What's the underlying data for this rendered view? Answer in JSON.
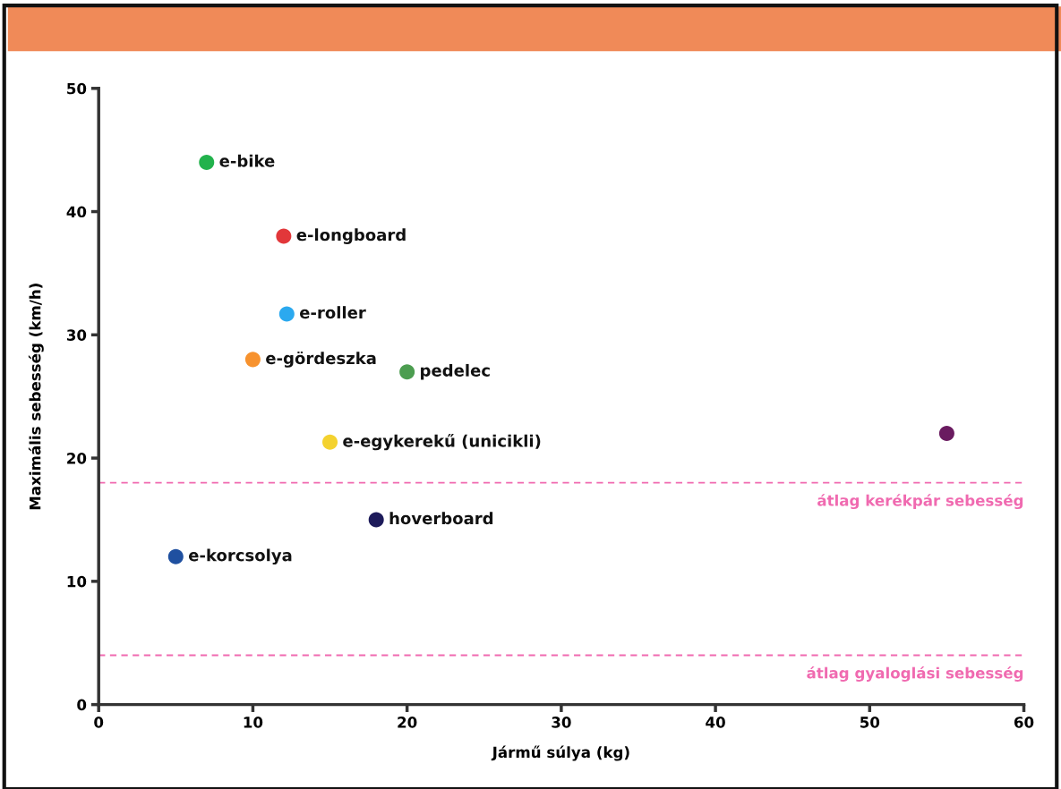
{
  "chart_data": {
    "type": "scatter",
    "xlabel": "Jármű súlya (kg)",
    "ylabel": "Maximális sebesség (km/h)",
    "xlim": [
      0,
      60
    ],
    "xticks": [
      0,
      10,
      20,
      30,
      40,
      50,
      60
    ],
    "ylim": [
      0,
      50
    ],
    "yticks": [
      0,
      10,
      20,
      30,
      40,
      50
    ],
    "grid": false,
    "legend": false,
    "marker": "circle",
    "series": [
      {
        "name": "e-bike",
        "color": "#22b24c",
        "x": [
          7
        ],
        "values": [
          44
        ]
      },
      {
        "name": "e-longboard",
        "color": "#e2373a",
        "x": [
          12
        ],
        "values": [
          38
        ]
      },
      {
        "name": "e-roller",
        "color": "#2ba9ef",
        "x": [
          12.2
        ],
        "values": [
          31.7
        ]
      },
      {
        "name": "e-gördeszka",
        "color": "#f7922e",
        "x": [
          10
        ],
        "values": [
          28
        ]
      },
      {
        "name": "pedelec",
        "color": "#4c9d50",
        "x": [
          20
        ],
        "values": [
          27
        ]
      },
      {
        "name": "e-egykerekű (unicikli)",
        "color": "#f4d22f",
        "x": [
          15
        ],
        "values": [
          21.3
        ]
      },
      {
        "color": "#6a1b60",
        "x": [
          55
        ],
        "values": [
          22
        ]
      },
      {
        "name": "hoverboard",
        "color": "#1d1b5a",
        "x": [
          18
        ],
        "values": [
          15
        ]
      },
      {
        "name": "e-korcsolya",
        "color": "#1f50a0",
        "x": [
          5
        ],
        "values": [
          12
        ]
      }
    ],
    "ref_lines": [
      {
        "axis": "y",
        "value": 18,
        "label": "átlag kerékpár sebesség",
        "color": "#f06ab0",
        "line_style": "dashed"
      },
      {
        "axis": "y",
        "value": 4,
        "label": "átlag gyaloglási sebesség",
        "color": "#f06ab0",
        "line_style": "dashed"
      }
    ]
  }
}
